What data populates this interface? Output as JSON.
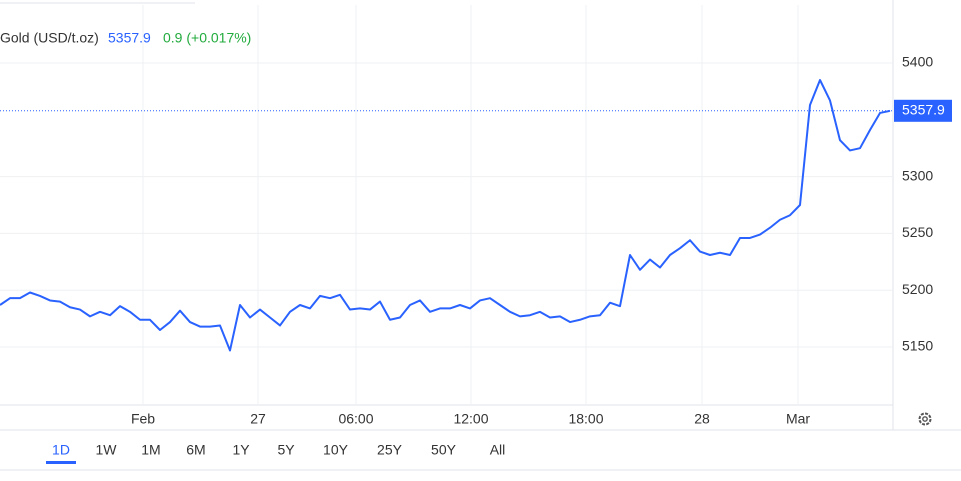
{
  "chart_data": {
    "type": "line",
    "legend": {
      "name": "Gold (USD/t.oz)",
      "price": "5357.9",
      "change": "0.9 (+0.017%)"
    },
    "series": [
      {
        "name": "Gold",
        "color": "#2962ff",
        "values": [
          5187,
          5193,
          5193,
          5198,
          5195,
          5191,
          5190,
          5185,
          5183,
          5177,
          5181,
          5178,
          5186,
          5181,
          5174,
          5174,
          5165,
          5172,
          5182,
          5172,
          5168,
          5168,
          5169,
          5147,
          5187,
          5176,
          5183,
          5176,
          5169,
          5181,
          5187,
          5184,
          5195,
          5193,
          5196,
          5183,
          5184,
          5183,
          5190,
          5174,
          5176,
          5187,
          5191,
          5181,
          5184,
          5184,
          5187,
          5184,
          5191,
          5193,
          5187,
          5181,
          5177,
          5178,
          5181,
          5176,
          5177,
          5172,
          5174,
          5177,
          5178,
          5189,
          5186,
          5231,
          5218,
          5227,
          5220,
          5231,
          5237,
          5244,
          5234,
          5231,
          5233,
          5231,
          5246,
          5246,
          5249,
          5255,
          5262,
          5266,
          5275,
          5363,
          5385,
          5367,
          5332,
          5323,
          5325,
          5341,
          5356,
          5357.9
        ]
      }
    ],
    "xlim": [
      0,
      89.3
    ],
    "xticks": [
      {
        "value": 14.3,
        "label": "Feb"
      },
      {
        "value": 25.8,
        "label": "27"
      },
      {
        "value": 35.6,
        "label": "06:00"
      },
      {
        "value": 47.1,
        "label": "12:00"
      },
      {
        "value": 58.6,
        "label": "18:00"
      },
      {
        "value": 70.2,
        "label": "28"
      },
      {
        "value": 79.8,
        "label": "Mar"
      }
    ],
    "ylim": [
      5099,
      5451
    ],
    "yticks": [
      5150,
      5200,
      5250,
      5300,
      5400
    ],
    "grid": true,
    "ranges": [
      "1D",
      "1W",
      "1M",
      "6M",
      "1Y",
      "5Y",
      "10Y",
      "25Y",
      "50Y",
      "All"
    ],
    "selected_range": "1D"
  }
}
